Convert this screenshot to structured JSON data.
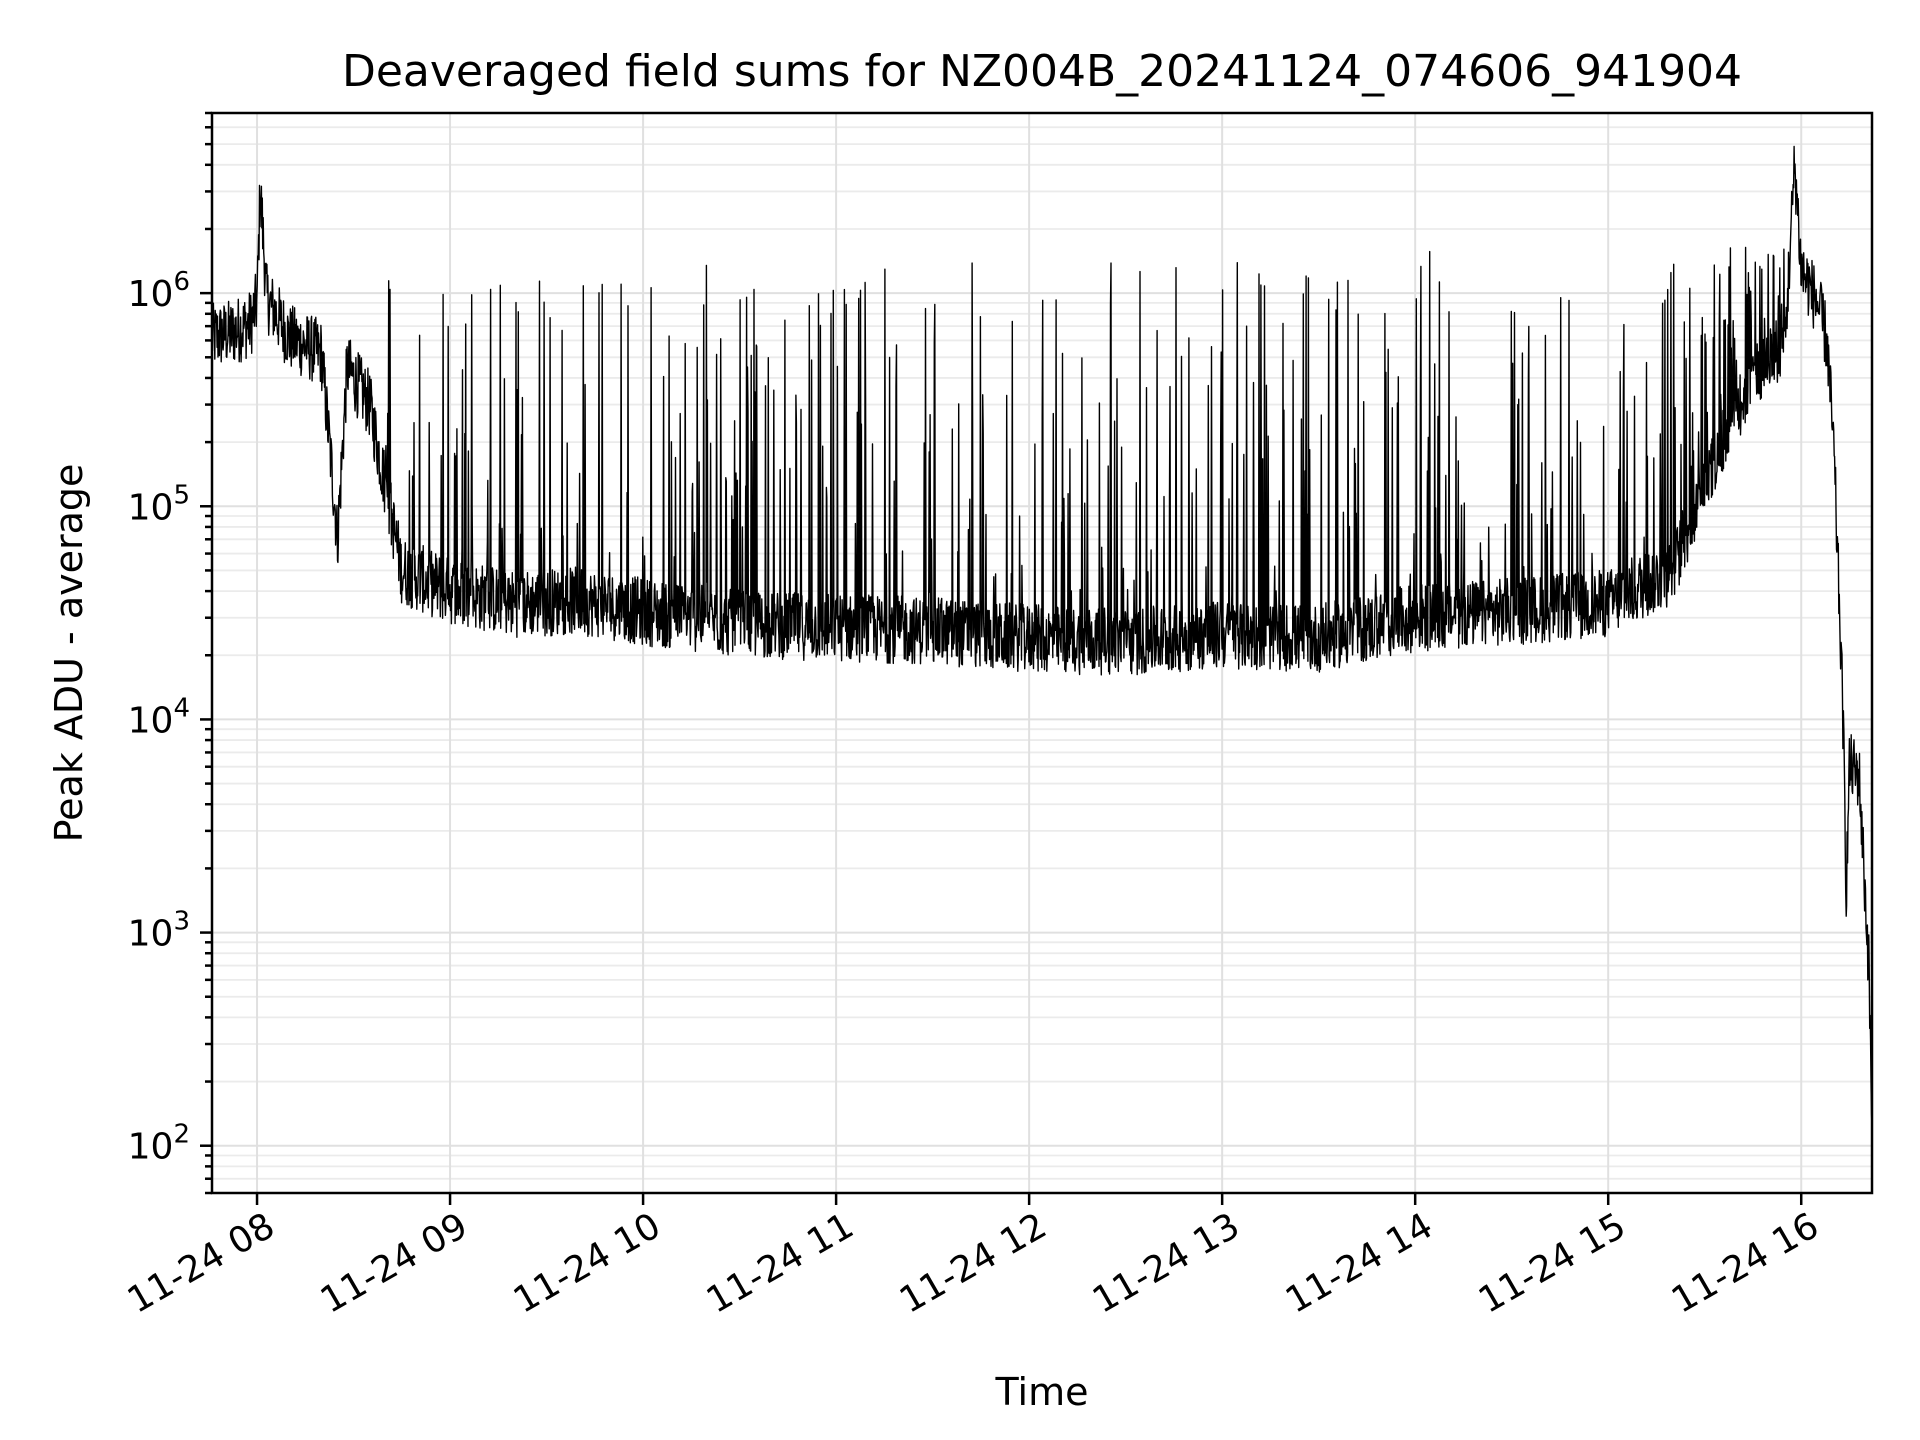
{
  "chart_data": {
    "type": "line",
    "title": "Deaveraged field sums for NZ004B_20241124_074606_941904",
    "xlabel": "Time",
    "ylabel": "Peak ADU - average",
    "yscale": "log",
    "ylim": [
      60,
      7000000
    ],
    "xlim": [
      "2024-11-24 07:46",
      "2024-11-24 16:22"
    ],
    "grid": true,
    "line_color": "#000000",
    "x_ticks": [
      "11-24 08",
      "11-24 09",
      "11-24 10",
      "11-24 11",
      "11-24 12",
      "11-24 13",
      "11-24 14",
      "11-24 15",
      "11-24 16"
    ],
    "y_ticks": [
      {
        "base": "10",
        "exp": "2",
        "value": 100
      },
      {
        "base": "10",
        "exp": "3",
        "value": 1000
      },
      {
        "base": "10",
        "exp": "4",
        "value": 10000
      },
      {
        "base": "10",
        "exp": "5",
        "value": 100000
      },
      {
        "base": "10",
        "exp": "6",
        "value": 1000000
      }
    ],
    "series": [
      {
        "x": [
          "2024-11-24 07:46",
          "2024-11-24 07:52",
          "2024-11-24 07:58",
          "2024-11-24 08:00",
          "2024-11-24 08:01",
          "2024-11-24 08:03",
          "2024-11-24 08:10",
          "2024-11-24 08:20",
          "2024-11-24 08:24",
          "2024-11-24 08:25",
          "2024-11-24 08:28",
          "2024-11-24 08:35",
          "2024-11-24 08:45",
          "2024-11-24 09:00",
          "2024-11-24 09:20",
          "2024-11-24 09:40",
          "2024-11-24 10:00",
          "2024-11-24 10:30",
          "2024-11-24 11:00",
          "2024-11-24 11:30",
          "2024-11-24 12:00",
          "2024-11-24 12:30",
          "2024-11-24 13:00",
          "2024-11-24 13:30",
          "2024-11-24 14:00",
          "2024-11-24 14:30",
          "2024-11-24 15:00",
          "2024-11-24 15:20",
          "2024-11-24 15:35",
          "2024-11-24 15:45",
          "2024-11-24 15:55",
          "2024-11-24 15:58",
          "2024-11-24 16:00",
          "2024-11-24 16:05",
          "2024-11-24 16:08",
          "2024-11-24 16:10",
          "2024-11-24 16:12",
          "2024-11-24 16:13",
          "2024-11-24 16:14",
          "2024-11-24 16:15",
          "2024-11-24 16:18",
          "2024-11-24 16:21",
          "2024-11-24 16:22"
        ],
        "values": [
          620000,
          650000,
          720000,
          900000,
          3100000,
          950000,
          620000,
          520000,
          110000,
          70000,
          450000,
          300000,
          50000,
          40000,
          35000,
          36000,
          32000,
          28000,
          27000,
          26000,
          24000,
          23000,
          25000,
          24000,
          30000,
          32000,
          35000,
          50000,
          200000,
          400000,
          600000,
          4100000,
          1300000,
          900000,
          600000,
          200000,
          30000,
          10000,
          1600,
          6000,
          5500,
          700,
          130
        ],
        "spike_peaks": [
          1500000,
          1400000,
          1600000,
          1300000,
          1300000,
          1200000,
          1300000,
          1250000,
          1200000,
          1150000,
          1100000,
          1200000,
          1250000,
          1300000,
          1350000,
          1400000,
          1600000,
          1700000
        ]
      }
    ]
  }
}
